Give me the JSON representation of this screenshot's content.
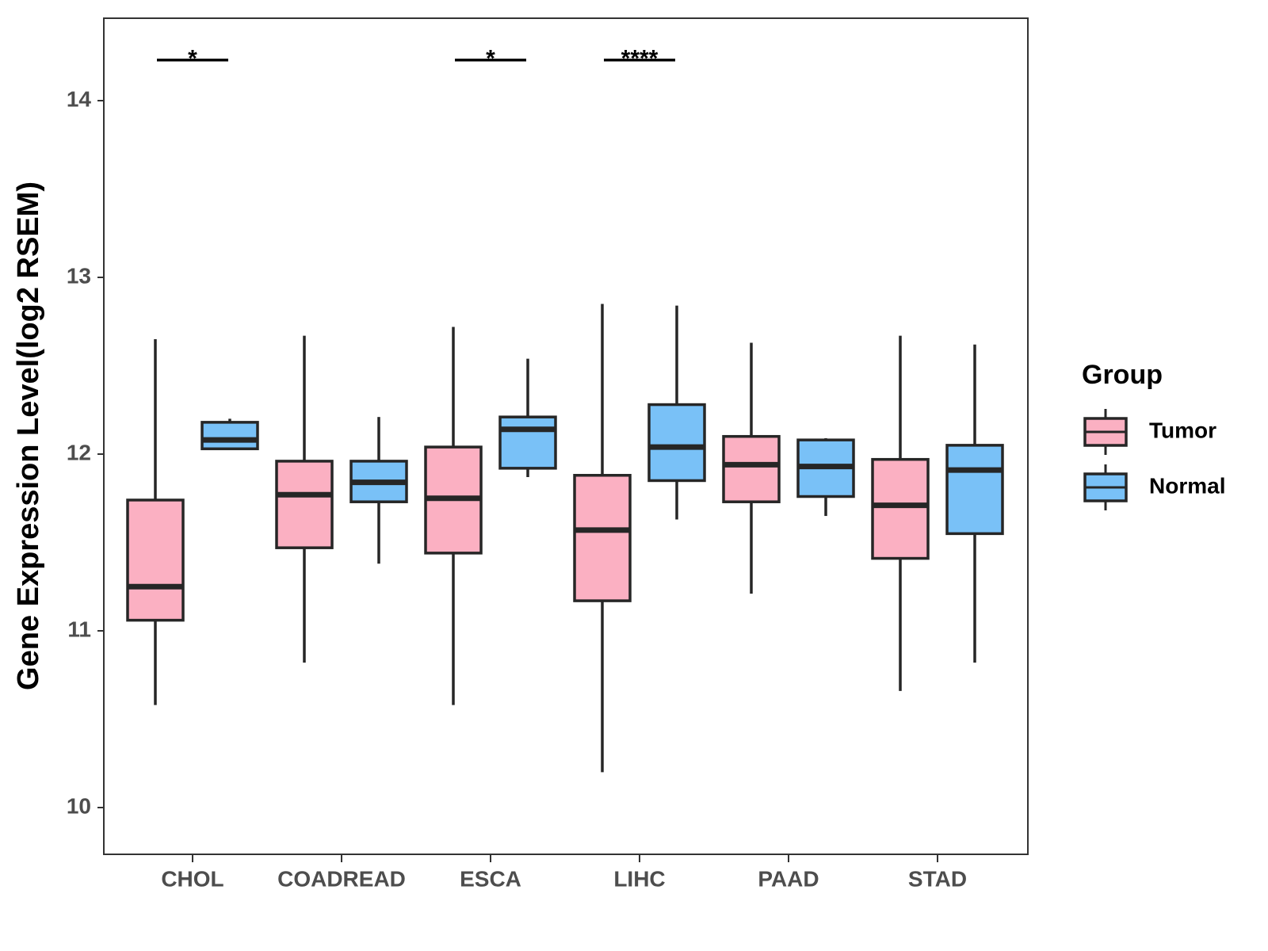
{
  "chart_data": {
    "type": "boxplot",
    "ylabel": "Gene Expression Level(log2 RSEM)",
    "xlabel": "",
    "ylim": [
      9.75,
      14.5
    ],
    "yticks": [
      10,
      11,
      12,
      13,
      14
    ],
    "categories": [
      "CHOL",
      "COADREAD",
      "ESCA",
      "LIHC",
      "PAAD",
      "STAD"
    ],
    "series": [
      {
        "name": "Tumor",
        "color": "#fbb0c2",
        "boxes": [
          {
            "category": "CHOL",
            "min": 10.58,
            "q1": 11.06,
            "median": 11.25,
            "q3": 11.74,
            "max": 12.65
          },
          {
            "category": "COADREAD",
            "min": 10.82,
            "q1": 11.47,
            "median": 11.77,
            "q3": 11.96,
            "max": 12.67
          },
          {
            "category": "ESCA",
            "min": 10.58,
            "q1": 11.44,
            "median": 11.75,
            "q3": 12.04,
            "max": 12.72
          },
          {
            "category": "LIHC",
            "min": 10.2,
            "q1": 11.17,
            "median": 11.57,
            "q3": 11.88,
            "max": 12.85
          },
          {
            "category": "PAAD",
            "min": 11.21,
            "q1": 11.73,
            "median": 11.94,
            "q3": 12.1,
            "max": 12.63
          },
          {
            "category": "STAD",
            "min": 10.66,
            "q1": 11.41,
            "median": 11.71,
            "q3": 11.97,
            "max": 12.67
          }
        ]
      },
      {
        "name": "Normal",
        "color": "#79c1f7",
        "boxes": [
          {
            "category": "CHOL",
            "min": 12.03,
            "q1": 12.03,
            "median": 12.08,
            "q3": 12.18,
            "max": 12.2
          },
          {
            "category": "COADREAD",
            "min": 11.38,
            "q1": 11.73,
            "median": 11.84,
            "q3": 11.96,
            "max": 12.21
          },
          {
            "category": "ESCA",
            "min": 11.87,
            "q1": 11.92,
            "median": 12.14,
            "q3": 12.21,
            "max": 12.54
          },
          {
            "category": "LIHC",
            "min": 11.63,
            "q1": 11.85,
            "median": 12.04,
            "q3": 12.28,
            "max": 12.84
          },
          {
            "category": "PAAD",
            "min": 11.65,
            "q1": 11.76,
            "median": 11.93,
            "q3": 12.08,
            "max": 12.09
          },
          {
            "category": "STAD",
            "min": 10.82,
            "q1": 11.55,
            "median": 11.91,
            "q3": 12.05,
            "max": 12.62
          }
        ]
      }
    ],
    "significance": [
      {
        "category": "CHOL",
        "label": "*",
        "y": 14.23
      },
      {
        "category": "ESCA",
        "label": "*",
        "y": 14.23
      },
      {
        "category": "LIHC",
        "label": "****",
        "y": 14.23
      }
    ],
    "legend": {
      "title": "Group",
      "position": "right"
    }
  }
}
